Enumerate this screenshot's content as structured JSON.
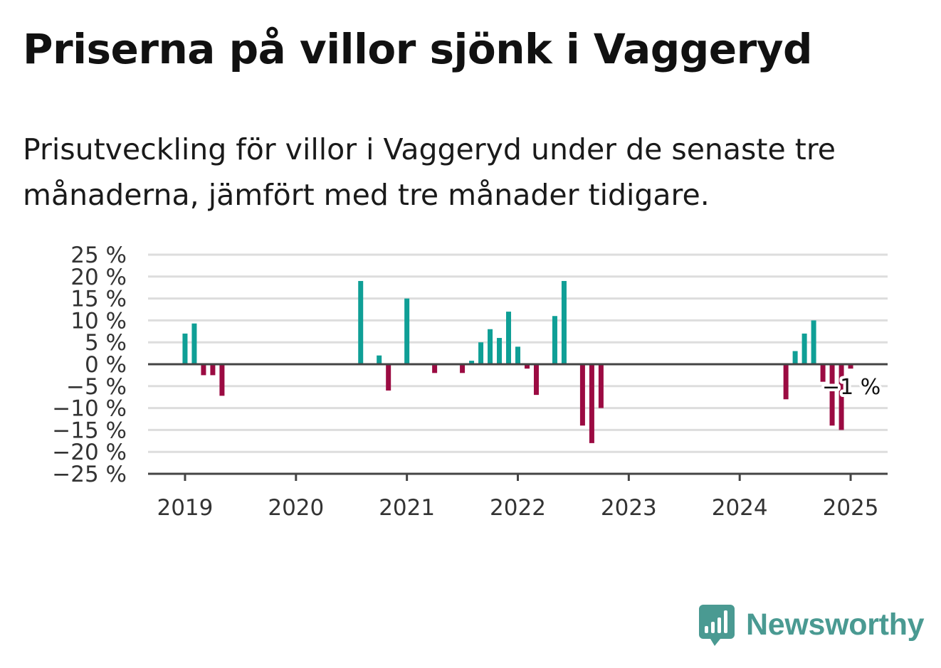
{
  "title": "Priserna på villor sjönk i Vaggeryd",
  "subtitle": "Prisutveckling för villor i Vaggeryd under de senaste tre månaderna, jämfört med tre månader tidigare.",
  "brand": {
    "name": "Newsworthy",
    "icon": "newsworthy-logo-icon",
    "color": "#4a9a92"
  },
  "colors": {
    "positive": "#0f9f96",
    "negative": "#9b0b42",
    "grid": "#dddddd",
    "axis": "#444444"
  },
  "chart_data": {
    "type": "bar",
    "xlim": [
      "2018-09",
      "2025-05"
    ],
    "ylim": [
      -25,
      25
    ],
    "y_ticks": [
      25,
      20,
      15,
      10,
      5,
      0,
      -5,
      -10,
      -15,
      -20,
      -25
    ],
    "y_tick_labels": [
      "25 %",
      "20 %",
      "15 %",
      "10 %",
      "5 %",
      "0 %",
      "−5 %",
      "−10 %",
      "−15 %",
      "−20 %",
      "−25 %"
    ],
    "x_ticks": [
      "2019-01",
      "2020-01",
      "2021-01",
      "2022-01",
      "2023-01",
      "2024-01",
      "2025-01"
    ],
    "x_tick_labels": [
      "2019",
      "2020",
      "2021",
      "2022",
      "2023",
      "2024",
      "2025"
    ],
    "grid": true,
    "series": [
      {
        "values": [
          {
            "x": "2019-01",
            "y": 7
          },
          {
            "x": "2019-02",
            "y": 9.3
          },
          {
            "x": "2019-03",
            "y": -2.5
          },
          {
            "x": "2019-04",
            "y": -2.5
          },
          {
            "x": "2019-05",
            "y": -7.2
          },
          {
            "x": "2020-08",
            "y": 19
          },
          {
            "x": "2020-10",
            "y": 2
          },
          {
            "x": "2020-11",
            "y": -6
          },
          {
            "x": "2021-01",
            "y": 15
          },
          {
            "x": "2021-04",
            "y": -2
          },
          {
            "x": "2021-07",
            "y": -2
          },
          {
            "x": "2021-08",
            "y": 0.8
          },
          {
            "x": "2021-09",
            "y": 5
          },
          {
            "x": "2021-10",
            "y": 8
          },
          {
            "x": "2021-11",
            "y": 6
          },
          {
            "x": "2021-12",
            "y": 12
          },
          {
            "x": "2022-01",
            "y": 4
          },
          {
            "x": "2022-02",
            "y": -1
          },
          {
            "x": "2022-03",
            "y": -7
          },
          {
            "x": "2022-05",
            "y": 11
          },
          {
            "x": "2022-06",
            "y": 19
          },
          {
            "x": "2022-08",
            "y": -14
          },
          {
            "x": "2022-09",
            "y": -18
          },
          {
            "x": "2022-10",
            "y": -10
          },
          {
            "x": "2024-06",
            "y": -8
          },
          {
            "x": "2024-07",
            "y": 3
          },
          {
            "x": "2024-08",
            "y": 7
          },
          {
            "x": "2024-09",
            "y": 10
          },
          {
            "x": "2024-10",
            "y": -4
          },
          {
            "x": "2024-11",
            "y": -14
          },
          {
            "x": "2024-12",
            "y": -15
          },
          {
            "x": "2025-01",
            "y": -1
          }
        ]
      }
    ],
    "annotations": [
      {
        "x": "2025-01",
        "y": -1,
        "text": "−1 %"
      }
    ]
  }
}
